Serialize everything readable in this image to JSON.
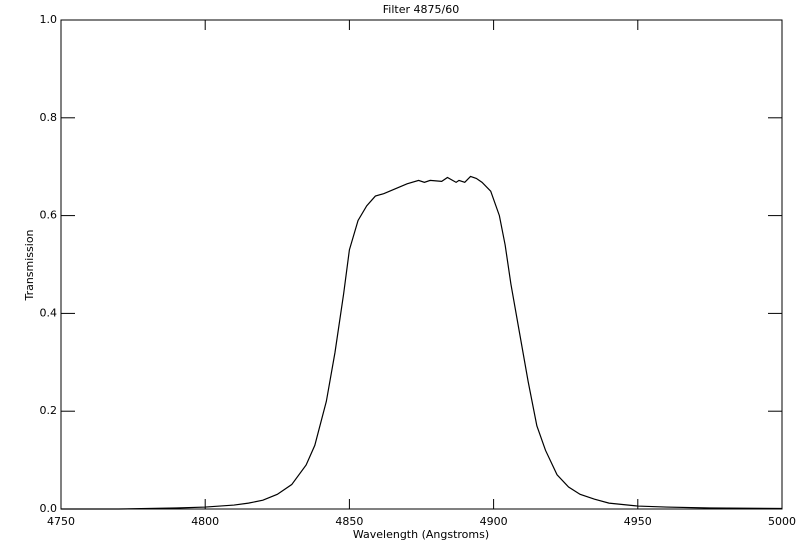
{
  "chart_data": {
    "type": "line",
    "title": "Filter 4875/60",
    "x_label": "Wavelength (Angstroms)",
    "y_label": "Transmission",
    "x": [
      4750,
      4770,
      4790,
      4800,
      4810,
      4815,
      4820,
      4825,
      4830,
      4835,
      4838,
      4842,
      4845,
      4848,
      4850,
      4853,
      4856,
      4859,
      4862,
      4866,
      4870,
      4874,
      4876,
      4878,
      4882,
      4884,
      4887,
      4888,
      4890,
      4892,
      4894,
      4896,
      4899,
      4902,
      4904,
      4906,
      4909,
      4912,
      4915,
      4918,
      4922,
      4926,
      4930,
      4935,
      4940,
      4950,
      4960,
      4975,
      5000
    ],
    "series": [
      {
        "name": "Transmission",
        "color": "#000000",
        "values": [
          0.0,
          0.0,
          0.002,
          0.004,
          0.008,
          0.012,
          0.018,
          0.03,
          0.05,
          0.09,
          0.13,
          0.22,
          0.32,
          0.44,
          0.53,
          0.59,
          0.62,
          0.64,
          0.645,
          0.655,
          0.665,
          0.672,
          0.668,
          0.672,
          0.67,
          0.678,
          0.668,
          0.672,
          0.668,
          0.68,
          0.676,
          0.668,
          0.65,
          0.6,
          0.54,
          0.46,
          0.36,
          0.26,
          0.17,
          0.12,
          0.07,
          0.045,
          0.03,
          0.02,
          0.012,
          0.006,
          0.004,
          0.002,
          0.001
        ]
      }
    ],
    "xlim": [
      4750,
      5000
    ],
    "xticks": [
      4750,
      4800,
      4850,
      4900,
      4950,
      5000
    ],
    "ylim": [
      0,
      1
    ],
    "yticks": [
      {
        "value": 0,
        "label": "0.0"
      },
      0.2,
      0.4,
      0.6,
      0.8,
      {
        "value": 1,
        "label": "1.0"
      }
    ],
    "grid": false
  }
}
